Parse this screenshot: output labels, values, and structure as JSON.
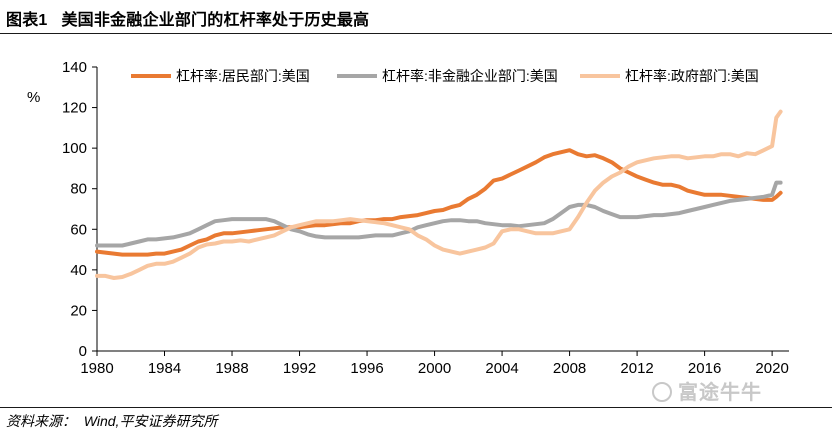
{
  "figure_label": "图表1",
  "title": "美国非金融企业部门的杠杆率处于历史最高",
  "source": "资料来源：  Wind,平安证券研究所",
  "watermark": "富途牛牛",
  "chart_data": {
    "type": "line",
    "ylabel": "%",
    "xlim": [
      1980,
      2021
    ],
    "ylim": [
      0,
      140
    ],
    "xticks": [
      1980,
      1984,
      1988,
      1992,
      1996,
      2000,
      2004,
      2008,
      2012,
      2016,
      2020
    ],
    "yticks": [
      0,
      20,
      40,
      60,
      80,
      100,
      120,
      140
    ],
    "grid": false,
    "legend": "top",
    "series": [
      {
        "name": "杠杆率:居民部门:美国",
        "color": "#E97A32",
        "points": [
          [
            1980.0,
            49
          ],
          [
            1980.5,
            48.5
          ],
          [
            1981,
            48
          ],
          [
            1981.5,
            47.5
          ],
          [
            1982,
            47.5
          ],
          [
            1982.5,
            47.5
          ],
          [
            1983,
            47.5
          ],
          [
            1983.5,
            48
          ],
          [
            1984,
            48
          ],
          [
            1984.5,
            49
          ],
          [
            1985,
            50
          ],
          [
            1985.5,
            52
          ],
          [
            1986,
            54
          ],
          [
            1986.5,
            55
          ],
          [
            1987,
            57
          ],
          [
            1987.5,
            58
          ],
          [
            1988,
            58
          ],
          [
            1988.5,
            58.5
          ],
          [
            1989,
            59
          ],
          [
            1989.5,
            59.5
          ],
          [
            1990,
            60
          ],
          [
            1990.5,
            60.5
          ],
          [
            1991,
            61
          ],
          [
            1991.5,
            61
          ],
          [
            1992,
            61
          ],
          [
            1992.5,
            61.5
          ],
          [
            1993,
            62
          ],
          [
            1993.5,
            62
          ],
          [
            1994,
            62.5
          ],
          [
            1994.5,
            63
          ],
          [
            1995,
            63
          ],
          [
            1995.5,
            64
          ],
          [
            1996,
            64.5
          ],
          [
            1996.5,
            64.5
          ],
          [
            1997,
            65
          ],
          [
            1997.5,
            65
          ],
          [
            1998,
            66
          ],
          [
            1998.5,
            66.5
          ],
          [
            1999,
            67
          ],
          [
            1999.5,
            68
          ],
          [
            2000,
            69
          ],
          [
            2000.5,
            69.5
          ],
          [
            2001,
            71
          ],
          [
            2001.5,
            72
          ],
          [
            2002,
            75
          ],
          [
            2002.5,
            77
          ],
          [
            2003,
            80
          ],
          [
            2003.5,
            84
          ],
          [
            2004,
            85
          ],
          [
            2004.5,
            87
          ],
          [
            2005,
            89
          ],
          [
            2005.5,
            91
          ],
          [
            2006,
            93
          ],
          [
            2006.5,
            95.5
          ],
          [
            2007,
            97
          ],
          [
            2007.5,
            98
          ],
          [
            2008,
            99
          ],
          [
            2008.5,
            97
          ],
          [
            2009,
            96
          ],
          [
            2009.5,
            96.5
          ],
          [
            2010,
            95
          ],
          [
            2010.5,
            93
          ],
          [
            2011,
            90
          ],
          [
            2011.5,
            88
          ],
          [
            2012,
            86
          ],
          [
            2012.5,
            84.5
          ],
          [
            2013,
            83
          ],
          [
            2013.5,
            82
          ],
          [
            2014,
            82
          ],
          [
            2014.5,
            81
          ],
          [
            2015,
            79
          ],
          [
            2015.5,
            78
          ],
          [
            2016,
            77
          ],
          [
            2016.5,
            77
          ],
          [
            2017,
            77
          ],
          [
            2017.5,
            76.5
          ],
          [
            2018,
            76
          ],
          [
            2018.5,
            75.5
          ],
          [
            2019,
            75
          ],
          [
            2019.5,
            74.5
          ],
          [
            2020,
            74.5
          ],
          [
            2020.25,
            76
          ],
          [
            2020.5,
            78
          ]
        ]
      },
      {
        "name": "杠杆率:非金融企业部门:美国",
        "color": "#A6A6A6",
        "points": [
          [
            1980,
            52
          ],
          [
            1980.5,
            52
          ],
          [
            1981,
            52
          ],
          [
            1981.5,
            52
          ],
          [
            1982,
            53
          ],
          [
            1982.5,
            54
          ],
          [
            1983,
            55
          ],
          [
            1983.5,
            55
          ],
          [
            1984,
            55.5
          ],
          [
            1984.5,
            56
          ],
          [
            1985,
            57
          ],
          [
            1985.5,
            58
          ],
          [
            1986,
            60
          ],
          [
            1986.5,
            62
          ],
          [
            1987,
            64
          ],
          [
            1987.5,
            64.5
          ],
          [
            1988,
            65
          ],
          [
            1988.5,
            65
          ],
          [
            1989,
            65
          ],
          [
            1989.5,
            65
          ],
          [
            1990,
            65
          ],
          [
            1990.5,
            64
          ],
          [
            1991,
            62
          ],
          [
            1991.5,
            60
          ],
          [
            1992,
            59
          ],
          [
            1992.5,
            57.5
          ],
          [
            1993,
            56.5
          ],
          [
            1993.5,
            56
          ],
          [
            1994,
            56
          ],
          [
            1994.5,
            56
          ],
          [
            1995,
            56
          ],
          [
            1995.5,
            56
          ],
          [
            1996,
            56.5
          ],
          [
            1996.5,
            57
          ],
          [
            1997,
            57
          ],
          [
            1997.5,
            57
          ],
          [
            1998,
            58
          ],
          [
            1998.5,
            59
          ],
          [
            1999,
            61
          ],
          [
            1999.5,
            62
          ],
          [
            2000,
            63
          ],
          [
            2000.5,
            64
          ],
          [
            2001,
            64.5
          ],
          [
            2001.5,
            64.5
          ],
          [
            2002,
            64
          ],
          [
            2002.5,
            64
          ],
          [
            2003,
            63
          ],
          [
            2003.5,
            62.5
          ],
          [
            2004,
            62
          ],
          [
            2004.5,
            62
          ],
          [
            2005,
            61.5
          ],
          [
            2005.5,
            62
          ],
          [
            2006,
            62.5
          ],
          [
            2006.5,
            63
          ],
          [
            2007,
            65
          ],
          [
            2007.5,
            68
          ],
          [
            2008,
            71
          ],
          [
            2008.5,
            72
          ],
          [
            2009,
            72
          ],
          [
            2009.5,
            71
          ],
          [
            2010,
            69
          ],
          [
            2010.5,
            67.5
          ],
          [
            2011,
            66
          ],
          [
            2011.5,
            66
          ],
          [
            2012,
            66
          ],
          [
            2012.5,
            66.5
          ],
          [
            2013,
            67
          ],
          [
            2013.5,
            67
          ],
          [
            2014,
            67.5
          ],
          [
            2014.5,
            68
          ],
          [
            2015,
            69
          ],
          [
            2015.5,
            70
          ],
          [
            2016,
            71
          ],
          [
            2016.5,
            72
          ],
          [
            2017,
            73
          ],
          [
            2017.5,
            74
          ],
          [
            2018,
            74.5
          ],
          [
            2018.5,
            75
          ],
          [
            2019,
            75.5
          ],
          [
            2019.5,
            76
          ],
          [
            2020,
            77
          ],
          [
            2020.25,
            83
          ],
          [
            2020.5,
            83
          ]
        ]
      },
      {
        "name": "杠杆率:政府部门:美国",
        "color": "#F8C59E",
        "points": [
          [
            1980,
            37
          ],
          [
            1980.5,
            37
          ],
          [
            1981,
            36
          ],
          [
            1981.5,
            36.5
          ],
          [
            1982,
            38
          ],
          [
            1982.5,
            40
          ],
          [
            1983,
            42
          ],
          [
            1983.5,
            43
          ],
          [
            1984,
            43
          ],
          [
            1984.5,
            44
          ],
          [
            1985,
            46
          ],
          [
            1985.5,
            48
          ],
          [
            1986,
            51
          ],
          [
            1986.5,
            52.5
          ],
          [
            1987,
            53
          ],
          [
            1987.5,
            54
          ],
          [
            1988,
            54
          ],
          [
            1988.5,
            54.5
          ],
          [
            1989,
            54
          ],
          [
            1989.5,
            55
          ],
          [
            1990,
            56
          ],
          [
            1990.5,
            57
          ],
          [
            1991,
            59
          ],
          [
            1991.5,
            61
          ],
          [
            1992,
            62
          ],
          [
            1992.5,
            63
          ],
          [
            1993,
            64
          ],
          [
            1993.5,
            64
          ],
          [
            1994,
            64
          ],
          [
            1994.5,
            64.5
          ],
          [
            1995,
            65
          ],
          [
            1995.5,
            64.5
          ],
          [
            1996,
            64
          ],
          [
            1996.5,
            63.5
          ],
          [
            1997,
            63
          ],
          [
            1997.5,
            62
          ],
          [
            1998,
            61
          ],
          [
            1998.5,
            60
          ],
          [
            1999,
            57
          ],
          [
            1999.5,
            55
          ],
          [
            2000,
            52
          ],
          [
            2000.5,
            50
          ],
          [
            2001,
            49
          ],
          [
            2001.5,
            48
          ],
          [
            2002,
            49
          ],
          [
            2002.5,
            50
          ],
          [
            2003,
            51
          ],
          [
            2003.5,
            53
          ],
          [
            2004,
            59
          ],
          [
            2004.5,
            60
          ],
          [
            2005,
            60
          ],
          [
            2005.5,
            59
          ],
          [
            2006,
            58
          ],
          [
            2006.5,
            58
          ],
          [
            2007,
            58
          ],
          [
            2007.5,
            59
          ],
          [
            2008,
            60
          ],
          [
            2008.5,
            66
          ],
          [
            2009,
            73
          ],
          [
            2009.5,
            79
          ],
          [
            2010,
            83
          ],
          [
            2010.5,
            86
          ],
          [
            2011,
            88
          ],
          [
            2011.5,
            91
          ],
          [
            2012,
            93
          ],
          [
            2012.5,
            94
          ],
          [
            2013,
            95
          ],
          [
            2013.5,
            95.5
          ],
          [
            2014,
            96
          ],
          [
            2014.5,
            96
          ],
          [
            2015,
            95
          ],
          [
            2015.5,
            95.5
          ],
          [
            2016,
            96
          ],
          [
            2016.5,
            96
          ],
          [
            2017,
            97
          ],
          [
            2017.5,
            97
          ],
          [
            2018,
            96
          ],
          [
            2018.5,
            97.5
          ],
          [
            2019,
            97
          ],
          [
            2019.5,
            99
          ],
          [
            2020,
            101
          ],
          [
            2020.25,
            115
          ],
          [
            2020.5,
            118
          ]
        ]
      }
    ]
  }
}
